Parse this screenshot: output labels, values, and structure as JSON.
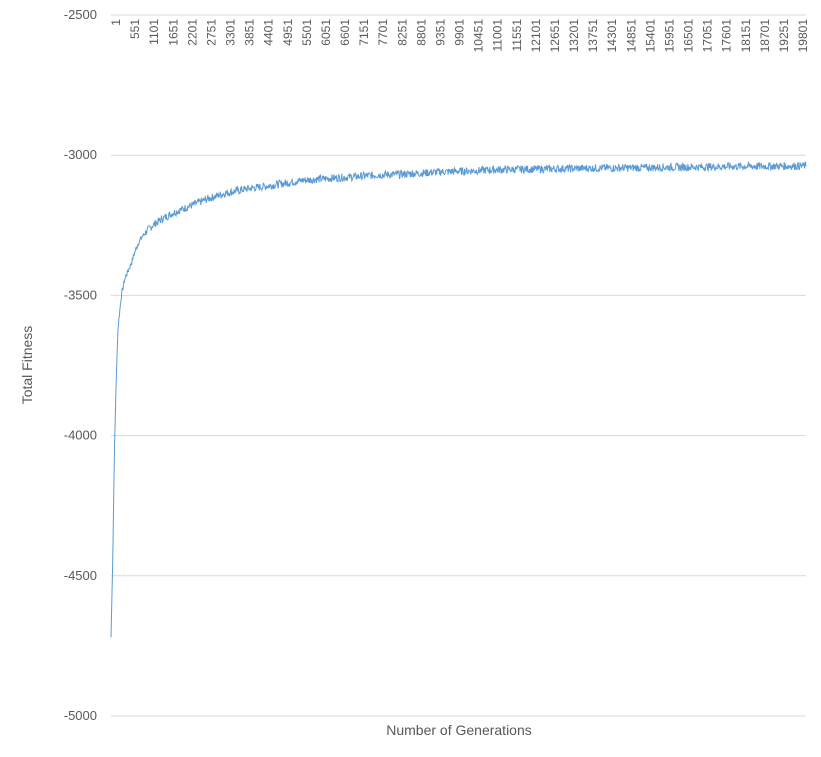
{
  "chart_data": {
    "type": "line",
    "title": "",
    "xlabel": "Number of Generations",
    "ylabel": "Total Fitness",
    "ylim": [
      -5000,
      -2500
    ],
    "y_ticks": [
      -2500,
      -3000,
      -3500,
      -4000,
      -4500,
      -5000
    ],
    "x_range": [
      1,
      20000
    ],
    "x_tick_labels": [
      "1",
      "551",
      "1101",
      "1651",
      "2201",
      "2751",
      "3301",
      "3851",
      "4401",
      "4951",
      "5501",
      "6051",
      "6601",
      "7151",
      "7701",
      "8251",
      "8801",
      "9351",
      "9901",
      "10451",
      "11001",
      "11551",
      "12101",
      "12651",
      "13201",
      "13751",
      "14301",
      "14851",
      "15401",
      "15951",
      "16501",
      "17051",
      "17601",
      "18151",
      "18701",
      "19251",
      "19801"
    ],
    "grid": "horizontal",
    "legend": "none",
    "series": [
      {
        "color": "#5b9bd5",
        "x": [
          1,
          50,
          100,
          150,
          200,
          300,
          400,
          500,
          600,
          700,
          800,
          900,
          1000,
          1200,
          1500,
          1800,
          2200,
          2800,
          3300,
          3900,
          4500,
          5000,
          5500,
          6000,
          6600,
          7200,
          7700,
          8300,
          8800,
          9400,
          9900,
          10500,
          11000,
          12000,
          13000,
          14000,
          15000,
          16000,
          17000,
          18000,
          19000,
          20000
        ],
        "y": [
          -4720,
          -4450,
          -4050,
          -3800,
          -3620,
          -3500,
          -3440,
          -3410,
          -3380,
          -3340,
          -3310,
          -3290,
          -3275,
          -3250,
          -3225,
          -3205,
          -3185,
          -3155,
          -3135,
          -3120,
          -3110,
          -3100,
          -3090,
          -3085,
          -3080,
          -3075,
          -3070,
          -3068,
          -3065,
          -3060,
          -3058,
          -3055,
          -3052,
          -3050,
          -3048,
          -3046,
          -3045,
          -3043,
          -3042,
          -3040,
          -3039,
          -3038
        ]
      }
    ]
  }
}
